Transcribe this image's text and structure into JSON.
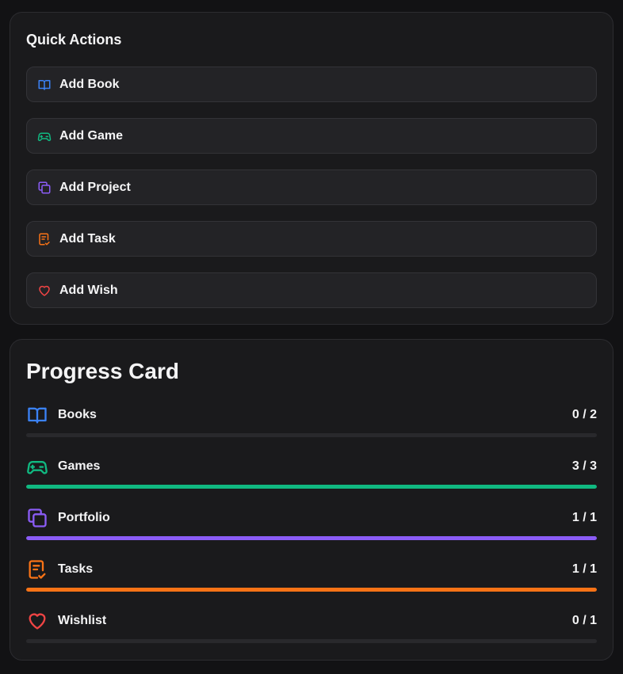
{
  "quick_actions": {
    "title": "Quick Actions",
    "buttons": [
      {
        "label": "Add Book",
        "icon": "book-icon",
        "color": "#3b82f6"
      },
      {
        "label": "Add Game",
        "icon": "gamepad-icon",
        "color": "#10b981"
      },
      {
        "label": "Add Project",
        "icon": "copy-icon",
        "color": "#8b5cf6"
      },
      {
        "label": "Add Task",
        "icon": "clipboard-check-icon",
        "color": "#f97316"
      },
      {
        "label": "Add Wish",
        "icon": "heart-icon",
        "color": "#ef4444"
      }
    ]
  },
  "progress": {
    "title": "Progress Card",
    "items": [
      {
        "label": "Books",
        "count": "0 / 2",
        "done": 0,
        "total": 2,
        "icon": "book-icon",
        "color": "#3b82f6"
      },
      {
        "label": "Games",
        "count": "3 / 3",
        "done": 3,
        "total": 3,
        "icon": "gamepad-icon",
        "color": "#10b981"
      },
      {
        "label": "Portfolio",
        "count": "1 / 1",
        "done": 1,
        "total": 1,
        "icon": "copy-icon",
        "color": "#8b5cf6"
      },
      {
        "label": "Tasks",
        "count": "1 / 1",
        "done": 1,
        "total": 1,
        "icon": "clipboard-check-icon",
        "color": "#f97316"
      },
      {
        "label": "Wishlist",
        "count": "0 / 1",
        "done": 0,
        "total": 1,
        "icon": "heart-icon",
        "color": "#ef4444"
      }
    ]
  }
}
